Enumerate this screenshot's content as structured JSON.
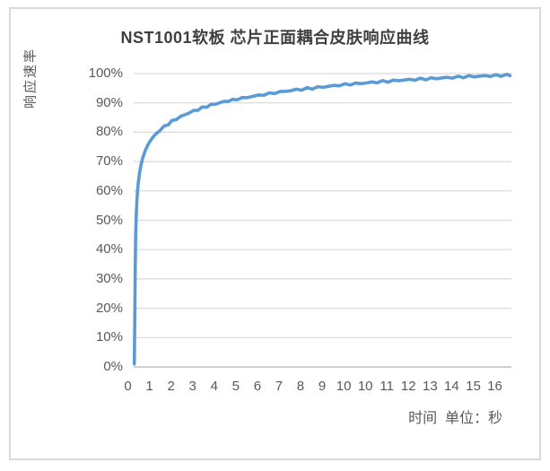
{
  "colors": {
    "line": "#5b9bd5",
    "gridline": "#d9d9d9",
    "axis_line": "#bfbfbf",
    "axis_text": "#595959",
    "title_text": "#3f3f3f",
    "frame_border": "#d9d9d9",
    "background": "#ffffff"
  },
  "chart_data": {
    "type": "line",
    "title": "NST1001软板 芯片正面耦合皮肤响应曲线",
    "ylabel": "响应速率",
    "xlabel": "时间  单位：秒",
    "legend": "none",
    "grid": true,
    "ylim": [
      0,
      100
    ],
    "y_tick_labels": [
      "100%",
      "90%",
      "80%",
      "70%",
      "60%",
      "50%",
      "40%",
      "30%",
      "20%",
      "10%",
      "0%"
    ],
    "x_tick_labels": [
      "0",
      "1",
      "2",
      "3",
      "4",
      "5",
      "6",
      "7",
      "8",
      "9",
      "10",
      "10",
      "11",
      "12",
      "13",
      "14",
      "15",
      "16"
    ],
    "series": [
      {
        "name": "响应速率",
        "points": [
          [
            0.3,
            1.0
          ],
          [
            0.32,
            15
          ],
          [
            0.34,
            33
          ],
          [
            0.36,
            45
          ],
          [
            0.39,
            52
          ],
          [
            0.43,
            58
          ],
          [
            0.48,
            62.5
          ],
          [
            0.54,
            66
          ],
          [
            0.61,
            69
          ],
          [
            0.7,
            71.5
          ],
          [
            0.8,
            73.6
          ],
          [
            0.92,
            75.6
          ],
          [
            1.05,
            77.2
          ],
          [
            1.2,
            78.7
          ],
          [
            1.35,
            79.8
          ],
          [
            1.5,
            80.8
          ],
          [
            1.68,
            81.9
          ],
          [
            1.86,
            82.8
          ],
          [
            2.05,
            83.7
          ],
          [
            2.25,
            84.6
          ],
          [
            2.45,
            85.3
          ],
          [
            2.65,
            86.0
          ],
          [
            2.85,
            86.7
          ],
          [
            3.05,
            87.2
          ],
          [
            3.25,
            87.8
          ],
          [
            3.45,
            88.3
          ],
          [
            3.65,
            88.8
          ],
          [
            3.85,
            89.3
          ],
          [
            4.05,
            89.6
          ],
          [
            4.25,
            90.1
          ],
          [
            4.45,
            90.3
          ],
          [
            4.65,
            90.8
          ],
          [
            4.85,
            90.9
          ],
          [
            5.05,
            91.3
          ],
          [
            5.3,
            91.6
          ],
          [
            5.55,
            91.9
          ],
          [
            5.8,
            92.3
          ],
          [
            6.05,
            92.5
          ],
          [
            6.3,
            92.9
          ],
          [
            6.55,
            93.1
          ],
          [
            6.8,
            93.5
          ],
          [
            7.05,
            93.7
          ],
          [
            7.3,
            94.0
          ],
          [
            7.55,
            94.2
          ],
          [
            7.8,
            94.5
          ],
          [
            8.05,
            94.6
          ],
          [
            8.3,
            94.9
          ],
          [
            8.55,
            95.0
          ],
          [
            8.8,
            95.3
          ],
          [
            9.05,
            95.4
          ],
          [
            9.3,
            95.7
          ],
          [
            9.55,
            95.8
          ],
          [
            9.8,
            96.1
          ],
          [
            10.05,
            96.2
          ],
          [
            10.3,
            96.4
          ],
          [
            10.55,
            96.5
          ],
          [
            10.8,
            96.7
          ],
          [
            11.05,
            96.8
          ],
          [
            11.3,
            97.0
          ],
          [
            11.55,
            97.1
          ],
          [
            11.8,
            97.3
          ],
          [
            12.05,
            97.4
          ],
          [
            12.3,
            97.5
          ],
          [
            12.55,
            97.7
          ],
          [
            12.8,
            97.8
          ],
          [
            13.05,
            97.9
          ],
          [
            13.3,
            98.0
          ],
          [
            13.55,
            98.1
          ],
          [
            13.8,
            98.2
          ],
          [
            14.05,
            98.3
          ],
          [
            14.3,
            98.4
          ],
          [
            14.55,
            98.5
          ],
          [
            14.8,
            98.6
          ],
          [
            15.05,
            98.7
          ],
          [
            15.3,
            98.8
          ],
          [
            15.55,
            98.9
          ],
          [
            15.8,
            99.0
          ],
          [
            16.05,
            99.05
          ],
          [
            16.3,
            99.1
          ],
          [
            16.55,
            99.2
          ],
          [
            16.8,
            99.25
          ],
          [
            17.05,
            99.3
          ],
          [
            17.3,
            99.4
          ],
          [
            17.55,
            99.45
          ],
          [
            17.7,
            99.5
          ]
        ]
      }
    ]
  }
}
